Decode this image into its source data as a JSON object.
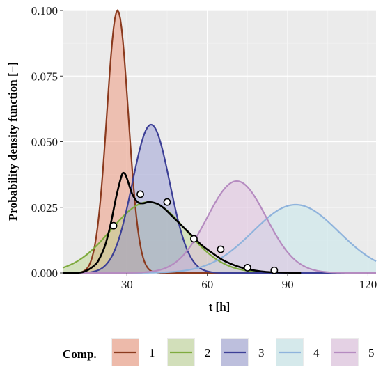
{
  "chart_data": {
    "type": "area",
    "xlabel": "t [h]",
    "ylabel": "Probability density function [−]",
    "xlim": [
      6,
      123
    ],
    "ylim": [
      0,
      0.1
    ],
    "x_ticks": [
      30,
      60,
      90,
      120
    ],
    "y_ticks": [
      0.0,
      0.025,
      0.05,
      0.075,
      0.1
    ],
    "x_tick_labels": [
      "30",
      "60",
      "90",
      "120"
    ],
    "y_tick_labels": [
      "0.000",
      "0.025",
      "0.050",
      "0.075",
      "0.100"
    ],
    "grid": true,
    "legend_position": "bottom",
    "legend_title": "Comp.",
    "series": [
      {
        "name": "1",
        "mean": 26.5,
        "sd": 4.0,
        "peak": 0.1,
        "color": "#8b3a1e",
        "fill": "#f08a6a"
      },
      {
        "name": "2",
        "mean": 38.0,
        "sd": 14.0,
        "peak": 0.027,
        "color": "#7fab3e",
        "fill": "#b9d48a"
      },
      {
        "name": "3",
        "mean": 39.0,
        "sd": 7.0,
        "peak": 0.0565,
        "color": "#3c3f96",
        "fill": "#8f93d0"
      },
      {
        "name": "4",
        "mean": 93.0,
        "sd": 16.0,
        "peak": 0.026,
        "color": "#8fb3dc",
        "fill": "#bfe7ec"
      },
      {
        "name": "5",
        "mean": 71.0,
        "sd": 11.0,
        "peak": 0.035,
        "color": "#b58bc0",
        "fill": "#ddb7dd"
      }
    ],
    "mixture_curve": {
      "color": "#000000",
      "x": [
        6,
        10,
        14,
        18,
        20,
        22,
        24,
        26,
        28,
        29,
        30,
        32,
        34,
        36,
        38,
        40,
        42,
        44,
        46,
        48,
        50,
        52,
        55,
        58,
        62,
        66,
        70,
        74,
        78,
        82,
        86,
        90,
        95
      ],
      "y": [
        0.0,
        0.0,
        0.0005,
        0.003,
        0.006,
        0.011,
        0.019,
        0.029,
        0.037,
        0.038,
        0.036,
        0.03,
        0.027,
        0.0265,
        0.027,
        0.0268,
        0.026,
        0.0245,
        0.0225,
        0.0205,
        0.0185,
        0.0165,
        0.0135,
        0.0105,
        0.0075,
        0.0048,
        0.003,
        0.0017,
        0.0009,
        0.0004,
        0.0002,
        0.0001,
        0.0
      ]
    },
    "observed_points": {
      "x": [
        25,
        35,
        45,
        55,
        65,
        75,
        85
      ],
      "y": [
        0.018,
        0.03,
        0.027,
        0.013,
        0.009,
        0.002,
        0.001
      ]
    }
  }
}
